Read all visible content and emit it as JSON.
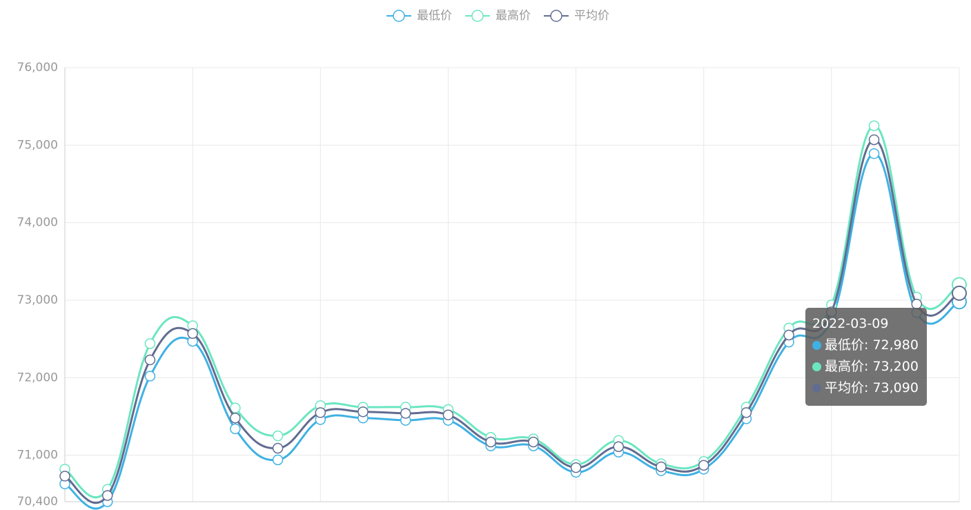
{
  "chart_data": {
    "type": "line",
    "smooth": true,
    "categories": [
      null,
      null,
      null,
      null,
      null,
      null,
      null,
      null,
      null,
      null,
      null,
      null,
      null,
      null,
      null,
      null,
      null,
      null,
      null,
      null,
      null,
      "2022-03-09"
    ],
    "series": [
      {
        "name": "最低价",
        "color": "#3fb1e3",
        "values": [
          70630,
          70400,
          72020,
          72470,
          71340,
          70940,
          71460,
          71480,
          71450,
          71450,
          71120,
          71120,
          70780,
          71040,
          70800,
          70820,
          71470,
          72460,
          72750,
          74890,
          72840,
          72980
        ],
        "value_labels": [
          null,
          null,
          null,
          null,
          null,
          null,
          null,
          null,
          null,
          null,
          null,
          null,
          null,
          null,
          null,
          null,
          null,
          null,
          null,
          null,
          null,
          "72,980"
        ]
      },
      {
        "name": "最高价",
        "color": "#6be6c1",
        "values": [
          70820,
          70560,
          72440,
          72670,
          71610,
          71250,
          71640,
          71620,
          71620,
          71590,
          71230,
          71210,
          70880,
          71190,
          70890,
          70920,
          71620,
          72640,
          72940,
          75250,
          73040,
          73200
        ],
        "value_labels": [
          null,
          null,
          null,
          null,
          null,
          null,
          null,
          null,
          null,
          null,
          null,
          null,
          null,
          null,
          null,
          null,
          null,
          null,
          null,
          null,
          null,
          "73,200"
        ]
      },
      {
        "name": "平均价",
        "color": "#626c91",
        "values": [
          70730,
          70480,
          72230,
          72570,
          71480,
          71090,
          71550,
          71560,
          71540,
          71520,
          71170,
          71170,
          70840,
          71110,
          70850,
          70870,
          71550,
          72550,
          72850,
          75070,
          72950,
          73090
        ],
        "value_labels": [
          null,
          null,
          null,
          null,
          null,
          null,
          null,
          null,
          null,
          null,
          null,
          null,
          null,
          null,
          null,
          null,
          null,
          null,
          null,
          null,
          null,
          "73,090"
        ]
      }
    ],
    "ylim": [
      70400,
      76000
    ],
    "yticks": [
      {
        "value": 70400,
        "label": "70,400"
      },
      {
        "value": 71000,
        "label": "71,000"
      },
      {
        "value": 72000,
        "label": "72,000"
      },
      {
        "value": 73000,
        "label": "73,000"
      },
      {
        "value": 74000,
        "label": "74,000"
      },
      {
        "value": 75000,
        "label": "75,000"
      },
      {
        "value": 76000,
        "label": "76,000"
      }
    ],
    "grid": true,
    "legend": "top",
    "tooltip_index": 21
  }
}
